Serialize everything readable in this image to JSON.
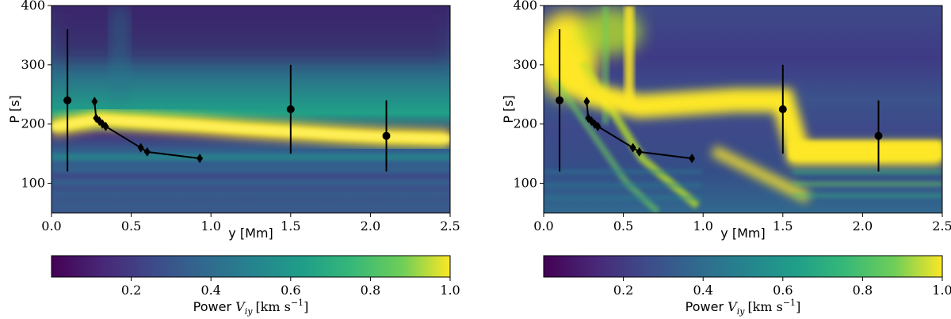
{
  "chart_data": [
    {
      "type": "heatmap",
      "panel": "left",
      "xlabel": "y [Mm]",
      "ylabel": "P [s]",
      "xlim": [
        0,
        2.5
      ],
      "ylim": [
        50,
        400
      ],
      "x_ticks": [
        "0.0",
        "0.5",
        "1.0",
        "1.5",
        "2.0",
        "2.5"
      ],
      "y_ticks": [
        "100",
        "200",
        "300",
        "400"
      ],
      "colormap": "viridis",
      "colorbar": {
        "ticks": [
          "0.2",
          "0.4",
          "0.6",
          "0.8",
          "1.0"
        ],
        "range": [
          0,
          1
        ],
        "label_prefix": "Power ",
        "label_var": "V",
        "label_sub": "iy",
        "label_units": "[km s",
        "label_exp": "−1",
        "label_close": "]"
      },
      "dominant_band": [
        {
          "y": 0.0,
          "p": 195
        },
        {
          "y": 0.3,
          "p": 208
        },
        {
          "y": 0.6,
          "p": 203
        },
        {
          "y": 0.9,
          "p": 198
        },
        {
          "y": 1.2,
          "p": 192
        },
        {
          "y": 1.5,
          "p": 187
        },
        {
          "y": 1.8,
          "p": 182
        },
        {
          "y": 2.1,
          "p": 178
        },
        {
          "y": 2.5,
          "p": 175
        }
      ],
      "series": [
        {
          "marker": "diamond",
          "points": [
            {
              "x": 0.27,
              "y": 238
            },
            {
              "x": 0.28,
              "y": 210
            },
            {
              "x": 0.3,
              "y": 205
            },
            {
              "x": 0.32,
              "y": 200
            },
            {
              "x": 0.34,
              "y": 196
            },
            {
              "x": 0.56,
              "y": 160
            },
            {
              "x": 0.6,
              "y": 153
            },
            {
              "x": 0.93,
              "y": 142
            }
          ]
        },
        {
          "marker": "circle",
          "points": [
            {
              "x": 0.1,
              "y": 240,
              "ymin": 120,
              "ymax": 360
            },
            {
              "x": 1.5,
              "y": 225,
              "ymin": 150,
              "ymax": 300
            },
            {
              "x": 2.1,
              "y": 180,
              "ymin": 120,
              "ymax": 240
            }
          ]
        }
      ]
    },
    {
      "type": "heatmap",
      "panel": "right",
      "xlabel": "y [Mm]",
      "ylabel": "P [s]",
      "xlim": [
        0,
        2.5
      ],
      "ylim": [
        50,
        400
      ],
      "x_ticks": [
        "0.0",
        "0.5",
        "1.0",
        "1.5",
        "2.0",
        "2.5"
      ],
      "y_ticks": [
        "100",
        "200",
        "300",
        "400"
      ],
      "colormap": "viridis",
      "colorbar": {
        "ticks": [
          "0.2",
          "0.4",
          "0.6",
          "0.8",
          "1.0"
        ],
        "range": [
          0,
          1
        ],
        "label_prefix": "Power ",
        "label_var": "V",
        "label_sub": "iy",
        "label_units": "[km s",
        "label_exp": "−1",
        "label_close": "]"
      },
      "dominant_band": [
        {
          "y": 0.0,
          "p": 330
        },
        {
          "y": 0.3,
          "p": 250
        },
        {
          "y": 0.6,
          "p": 230
        },
        {
          "y": 0.9,
          "p": 235
        },
        {
          "y": 1.2,
          "p": 240
        },
        {
          "y": 1.5,
          "p": 240
        },
        {
          "y": 1.6,
          "p": 150
        },
        {
          "y": 2.1,
          "p": 150
        },
        {
          "y": 2.5,
          "p": 150
        }
      ],
      "series": [
        {
          "marker": "diamond",
          "points": [
            {
              "x": 0.27,
              "y": 238
            },
            {
              "x": 0.28,
              "y": 210
            },
            {
              "x": 0.3,
              "y": 205
            },
            {
              "x": 0.32,
              "y": 200
            },
            {
              "x": 0.34,
              "y": 196
            },
            {
              "x": 0.56,
              "y": 160
            },
            {
              "x": 0.6,
              "y": 153
            },
            {
              "x": 0.93,
              "y": 142
            }
          ]
        },
        {
          "marker": "circle",
          "points": [
            {
              "x": 0.1,
              "y": 240,
              "ymin": 120,
              "ymax": 360
            },
            {
              "x": 1.5,
              "y": 225,
              "ymin": 150,
              "ymax": 300
            },
            {
              "x": 2.1,
              "y": 180,
              "ymin": 120,
              "ymax": 240
            }
          ]
        }
      ]
    }
  ]
}
